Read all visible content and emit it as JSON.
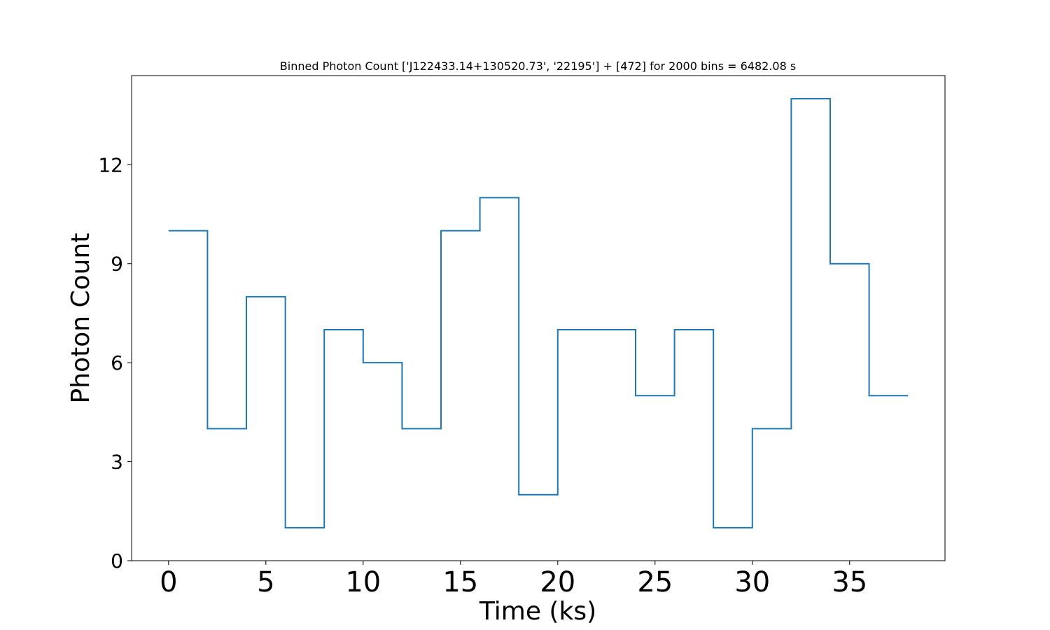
{
  "chart_data": {
    "type": "line",
    "title": "Binned Photon Count ['J122433.14+130520.73', '22195'] + [472] for 2000 bins = 6482.08 s",
    "xlabel": "Time (ks)",
    "ylabel": "Photon Count",
    "xlim": [
      -1.9,
      39.9
    ],
    "ylim": [
      0,
      14.7
    ],
    "xticks": [
      0,
      5,
      10,
      15,
      20,
      25,
      30,
      35
    ],
    "yticks": [
      0,
      3,
      6,
      9,
      12
    ],
    "grid": false,
    "line_color": "#1f77b4",
    "drawstyle": "steps-post",
    "series": [
      {
        "x": [
          0,
          2,
          4,
          6,
          8,
          10,
          12,
          14,
          16,
          18,
          20,
          22,
          24,
          26,
          28,
          30,
          32,
          34,
          36,
          38
        ],
        "values": [
          10,
          4,
          8,
          1,
          7,
          6,
          4,
          10,
          11,
          2,
          7,
          7,
          5,
          7,
          1,
          4,
          14,
          9,
          5,
          5
        ]
      }
    ]
  }
}
